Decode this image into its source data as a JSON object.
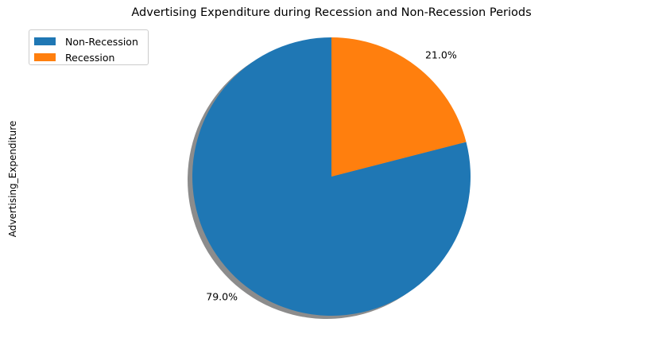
{
  "chart_data": {
    "type": "pie",
    "title": "Advertising Expenditure during Recession and Non-Recession Periods",
    "ylabel": "Advertising_Expenditure",
    "categories": [
      "Non-Recession",
      "Recession"
    ],
    "values": [
      79.0,
      21.0
    ],
    "labels": [
      "79.0%",
      "21.0%"
    ],
    "colors": [
      "#1f77b4",
      "#ff7f0e"
    ],
    "start_angle_deg": 90,
    "direction": "counterclockwise",
    "shadow": true,
    "legend": {
      "position": "upper-left",
      "entries": [
        "Non-Recession",
        "Recession"
      ]
    }
  }
}
